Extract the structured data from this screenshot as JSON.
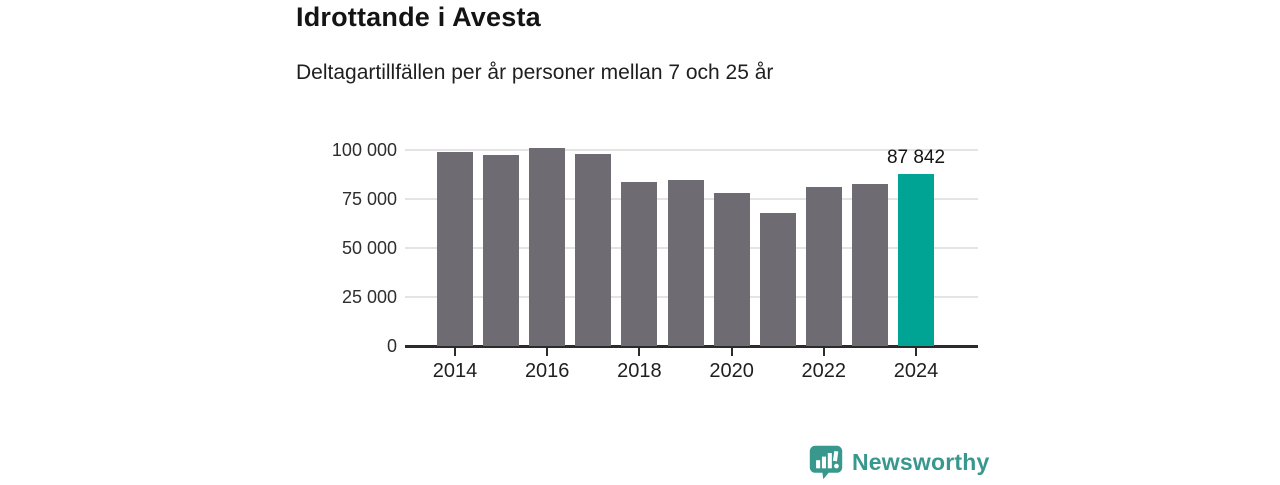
{
  "header": {
    "title": "Idrottande i Avesta",
    "subtitle": "Deltagartillfällen per år personer mellan 7 och 25 år"
  },
  "chart_data": {
    "type": "bar",
    "title": "Idrottande i Avesta",
    "subtitle": "Deltagartillfällen per år personer mellan 7 och 25 år",
    "xlabel": "",
    "ylabel": "",
    "categories": [
      "2014",
      "2015",
      "2016",
      "2017",
      "2018",
      "2019",
      "2020",
      "2021",
      "2022",
      "2023",
      "2024"
    ],
    "values": [
      99100,
      97400,
      101200,
      98000,
      83800,
      84700,
      77900,
      68000,
      81300,
      82500,
      87842
    ],
    "ylim": [
      0,
      100000
    ],
    "yticks": [
      0,
      25000,
      50000,
      75000,
      100000
    ],
    "ytick_labels": [
      "0",
      "25 000",
      "50 000",
      "75 000",
      "100 000"
    ],
    "xtick_labels": [
      "2014",
      "2016",
      "2018",
      "2020",
      "2022",
      "2024"
    ],
    "grid": true,
    "legend_position": "none",
    "highlight_index": 10,
    "highlight_label": "87 842",
    "bar_color": "#6e6c72",
    "highlight_color": "#00a494",
    "gridline_color": "#e4e4e4",
    "axis_color": "#2b2b2b"
  },
  "footer": {
    "brand": "Newsworthy",
    "brand_color": "#38988e",
    "logo_icon": "chart-speech-bubble-icon"
  }
}
